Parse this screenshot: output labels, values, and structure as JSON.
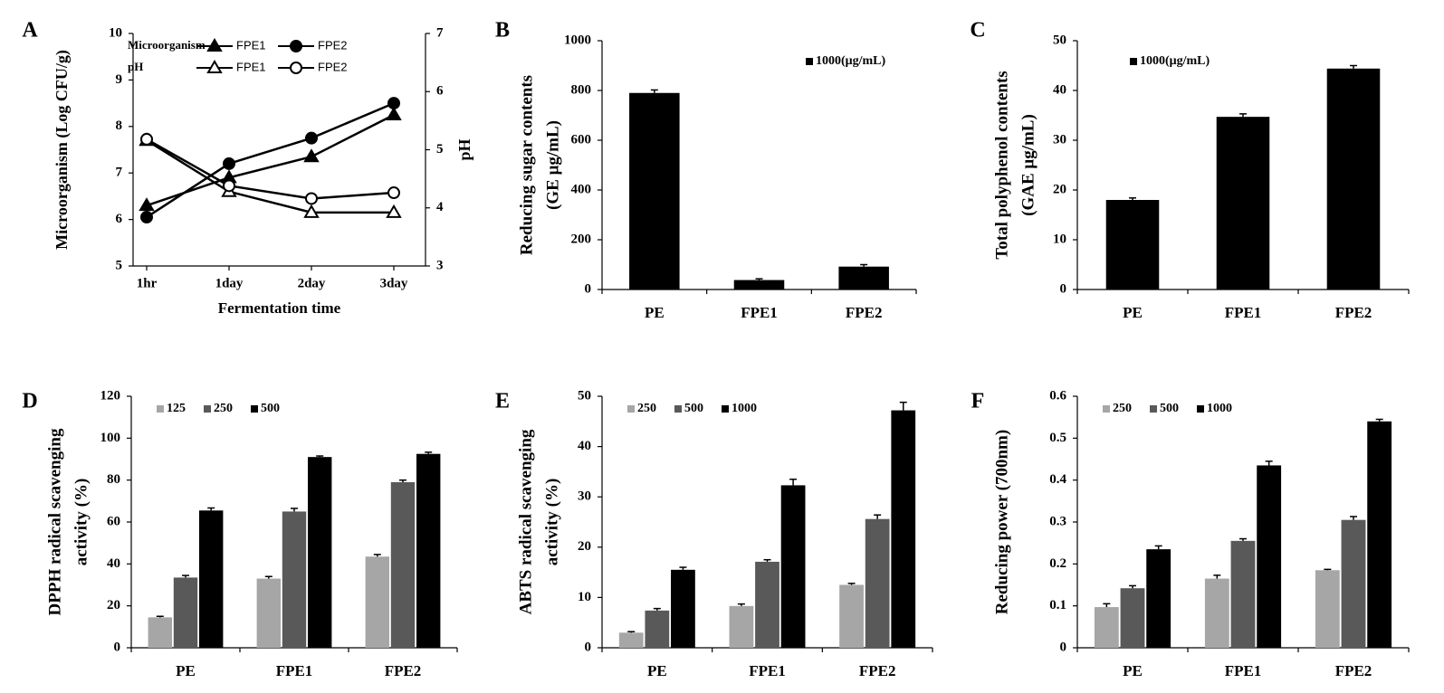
{
  "chart_data": [
    {
      "type": "line",
      "panel": "A",
      "ylabel": "Microorganism  (Log CFU/g)",
      "y2label": "pH",
      "xlabel": "Fermentation time",
      "categories": [
        "1hr",
        "1day",
        "2day",
        "3day"
      ],
      "ylim": [
        5,
        10
      ],
      "yticks": [
        5,
        6,
        7,
        8,
        9,
        10
      ],
      "y2lim": [
        3,
        7
      ],
      "y2ticks": [
        3,
        4,
        5,
        6,
        7
      ],
      "series": [
        {
          "name": "FPE1",
          "group": "Microorganism",
          "marker": "triangle",
          "filled": true,
          "color": "#000000",
          "values": [
            6.3,
            6.9,
            7.35,
            8.25
          ]
        },
        {
          "name": "FPE2",
          "marker": "circle",
          "filled": true,
          "color": "#000000",
          "values": [
            6.05,
            7.2,
            7.75,
            8.5
          ]
        },
        {
          "name": "FPE1",
          "group": "pH",
          "axis": "y2",
          "marker": "triangle",
          "filled": false,
          "color": "#000000",
          "values": [
            5.16,
            4.28,
            3.92,
            3.92
          ]
        },
        {
          "name": "FPE2",
          "axis": "y2",
          "marker": "circle",
          "filled": false,
          "color": "#000000",
          "values": [
            5.18,
            4.38,
            4.16,
            4.26
          ]
        }
      ]
    },
    {
      "type": "bar",
      "panel": "B",
      "ylabel": [
        "Reducing sugar contents",
        "(GE μg/mL)"
      ],
      "categories": [
        "PE",
        "FPE1",
        "FPE2"
      ],
      "ylim": [
        0,
        1000
      ],
      "yticks": [
        0,
        200,
        400,
        600,
        800,
        1000
      ],
      "series": [
        {
          "name": "1000(μg/mL)",
          "color": "#000000",
          "values": [
            790,
            38,
            92
          ],
          "errors": [
            12,
            5,
            8
          ]
        }
      ]
    },
    {
      "type": "bar",
      "panel": "C",
      "ylabel": [
        "Total polyphenol contents",
        "(GAE μg/mL)"
      ],
      "categories": [
        "PE",
        "FPE1",
        "FPE2"
      ],
      "ylim": [
        0,
        50
      ],
      "yticks": [
        0,
        10,
        20,
        30,
        40,
        50
      ],
      "series": [
        {
          "name": "1000(μg/mL)",
          "color": "#000000",
          "values": [
            18,
            34.7,
            44.4
          ],
          "errors": [
            0.4,
            0.6,
            0.6
          ]
        }
      ]
    },
    {
      "type": "bar",
      "panel": "D",
      "ylabel": [
        "DPPH radical scavenging",
        "activity (%)"
      ],
      "categories": [
        "PE",
        "FPE1",
        "FPE2"
      ],
      "ylim": [
        0,
        120
      ],
      "yticks": [
        0,
        20,
        40,
        60,
        80,
        100,
        120
      ],
      "series": [
        {
          "name": "125",
          "color": "#a6a6a6",
          "values": [
            14.5,
            33,
            43.5
          ],
          "errors": [
            0.5,
            1,
            1
          ]
        },
        {
          "name": "250",
          "color": "#595959",
          "values": [
            33.5,
            65,
            79
          ],
          "errors": [
            1,
            1.5,
            1
          ]
        },
        {
          "name": "500",
          "color": "#000000",
          "values": [
            65.5,
            91,
            92.5
          ],
          "errors": [
            1.2,
            0.5,
            0.8
          ]
        }
      ]
    },
    {
      "type": "bar",
      "panel": "E",
      "ylabel": [
        "ABTS radical scavenging",
        "activity (%)"
      ],
      "categories": [
        "PE",
        "FPE1",
        "FPE2"
      ],
      "ylim": [
        0,
        50
      ],
      "yticks": [
        0,
        10,
        20,
        30,
        40,
        50
      ],
      "series": [
        {
          "name": "250",
          "color": "#a6a6a6",
          "values": [
            3,
            8.3,
            12.5
          ],
          "errors": [
            0.2,
            0.4,
            0.3
          ]
        },
        {
          "name": "500",
          "color": "#595959",
          "values": [
            7.4,
            17.1,
            25.6
          ],
          "errors": [
            0.4,
            0.4,
            0.8
          ]
        },
        {
          "name": "1000",
          "color": "#000000",
          "values": [
            15.5,
            32.3,
            47.2
          ],
          "errors": [
            0.5,
            1.2,
            1.6
          ]
        }
      ]
    },
    {
      "type": "bar",
      "panel": "F",
      "ylabel": [
        "Reducing power (700nm)"
      ],
      "categories": [
        "PE",
        "FPE1",
        "FPE2"
      ],
      "ylim": [
        0,
        0.6
      ],
      "yticks": [
        0,
        0.1,
        0.2,
        0.3,
        0.4,
        0.5,
        0.6
      ],
      "series": [
        {
          "name": "250",
          "color": "#a6a6a6",
          "values": [
            0.097,
            0.165,
            0.185
          ],
          "errors": [
            0.008,
            0.008,
            0.002
          ]
        },
        {
          "name": "500",
          "color": "#595959",
          "values": [
            0.142,
            0.255,
            0.305
          ],
          "errors": [
            0.006,
            0.005,
            0.008
          ]
        },
        {
          "name": "1000",
          "color": "#000000",
          "values": [
            0.235,
            0.435,
            0.54
          ],
          "errors": [
            0.008,
            0.01,
            0.005
          ]
        }
      ]
    }
  ]
}
